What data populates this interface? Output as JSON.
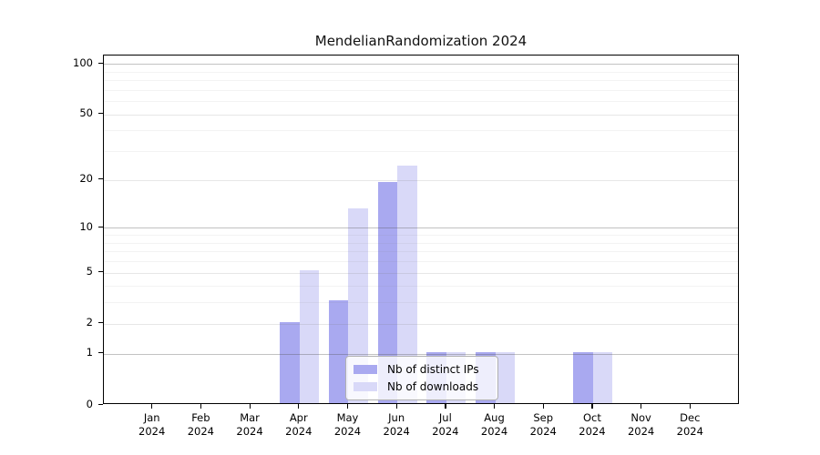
{
  "chart_data": {
    "type": "bar",
    "title": "MendelianRandomization 2024",
    "categories": [
      "Jan",
      "Feb",
      "Mar",
      "Apr",
      "May",
      "Jun",
      "Jul",
      "Aug",
      "Sep",
      "Oct",
      "Nov",
      "Dec"
    ],
    "category_year": "2024",
    "series": [
      {
        "name": "Nb of distinct IPs",
        "color": "#a9a9f0",
        "values": [
          0,
          0,
          0,
          2,
          3,
          19,
          1,
          1,
          0,
          1,
          0,
          0
        ]
      },
      {
        "name": "Nb of downloads",
        "color": "#d9d9f8",
        "values": [
          0,
          0,
          0,
          5,
          13,
          24,
          1,
          1,
          0,
          1,
          0,
          0
        ]
      }
    ],
    "yscale": "log1p",
    "ylim": [
      0,
      112
    ],
    "yticks": [
      0,
      1,
      2,
      5,
      10,
      20,
      50,
      100
    ],
    "major_gridlines": [
      1,
      10,
      100
    ],
    "semi_gridlines": [
      2,
      5,
      20,
      50
    ],
    "minor_gridlines": [
      3,
      4,
      6,
      7,
      8,
      9,
      30,
      40,
      60,
      70,
      80,
      90
    ],
    "legend_position": "lower center",
    "grid": "on"
  }
}
